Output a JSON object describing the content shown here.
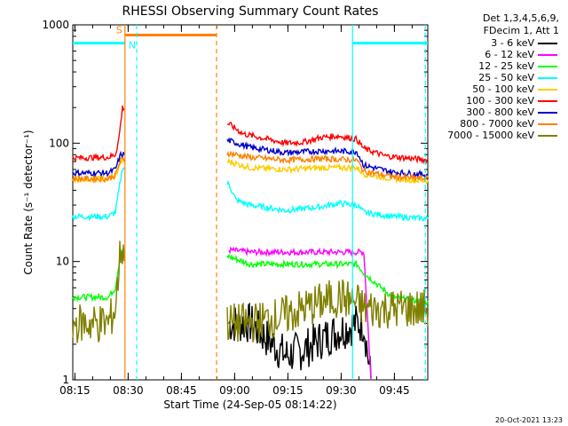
{
  "chart_data": {
    "type": "line",
    "title": "RHESSI Observing Summary Count Rates",
    "xlabel": "Start Time (24-Sep-05 08:14:22)",
    "ylabel": "Count Rate (s⁻¹ detector⁻¹)",
    "yscale": "log",
    "ylim": [
      1,
      1000
    ],
    "xlim_minutes": [
      0,
      100
    ],
    "x_ticks": [
      {
        "t": 0.6,
        "label": "08:15"
      },
      {
        "t": 15.6,
        "label": "08:30"
      },
      {
        "t": 30.6,
        "label": "08:45"
      },
      {
        "t": 45.6,
        "label": "09:00"
      },
      {
        "t": 60.6,
        "label": "09:15"
      },
      {
        "t": 75.6,
        "label": "09:30"
      },
      {
        "t": 90.6,
        "label": "09:45"
      }
    ],
    "y_ticks": [
      {
        "v": 1,
        "label": "1"
      },
      {
        "v": 10,
        "label": "10"
      },
      {
        "v": 100,
        "label": "100"
      },
      {
        "v": 1000,
        "label": "1000"
      }
    ],
    "data_gaps_minutes": [
      [
        14.5,
        43.5
      ]
    ],
    "series": [
      {
        "name": "3 - 6 keV",
        "color": "#000000",
        "points": [
          [
            44,
            3
          ],
          [
            50,
            3
          ],
          [
            55,
            2.2
          ],
          [
            60,
            1.6
          ],
          [
            65,
            1.8
          ],
          [
            70,
            2.2
          ],
          [
            75,
            2.6
          ],
          [
            80,
            3
          ],
          [
            82,
            3
          ],
          [
            84,
            1
          ]
        ]
      },
      {
        "name": "6 - 12 keV",
        "color": "#ff00ff",
        "points": [
          [
            44,
            12.5
          ],
          [
            50,
            12
          ],
          [
            60,
            12
          ],
          [
            70,
            12
          ],
          [
            78,
            12
          ],
          [
            82,
            12
          ],
          [
            84,
            1
          ]
        ]
      },
      {
        "name": "12 - 25 keV",
        "color": "#00ff00",
        "points": [
          [
            0,
            5
          ],
          [
            10,
            5
          ],
          [
            12,
            6
          ],
          [
            13.5,
            12
          ],
          [
            44,
            11
          ],
          [
            50,
            9.5
          ],
          [
            60,
            9.5
          ],
          [
            70,
            9.5
          ],
          [
            80,
            9.5
          ],
          [
            82,
            8
          ],
          [
            90,
            5
          ],
          [
            100,
            4.5
          ]
        ]
      },
      {
        "name": "25 - 50 keV",
        "color": "#00ffff",
        "points": [
          [
            0,
            24
          ],
          [
            10,
            24
          ],
          [
            12,
            26
          ],
          [
            13,
            40
          ],
          [
            14,
            62
          ],
          [
            44,
            45
          ],
          [
            46,
            33
          ],
          [
            50,
            30
          ],
          [
            60,
            27
          ],
          [
            70,
            29
          ],
          [
            75,
            31
          ],
          [
            80,
            30
          ],
          [
            82,
            26
          ],
          [
            90,
            24
          ],
          [
            100,
            23
          ]
        ]
      },
      {
        "name": "50 - 100 keV",
        "color": "#ffcc00",
        "points": [
          [
            0,
            50
          ],
          [
            10,
            50
          ],
          [
            12,
            52
          ],
          [
            13.5,
            70
          ],
          [
            44,
            70
          ],
          [
            50,
            62
          ],
          [
            60,
            60
          ],
          [
            70,
            62
          ],
          [
            80,
            62
          ],
          [
            82,
            55
          ],
          [
            90,
            50
          ],
          [
            100,
            48
          ]
        ]
      },
      {
        "name": "100 - 300 keV",
        "color": "#ff0000",
        "points": [
          [
            0,
            75
          ],
          [
            10,
            76
          ],
          [
            12,
            80
          ],
          [
            13,
            110
          ],
          [
            14,
            200
          ],
          [
            44,
            145
          ],
          [
            48,
            120
          ],
          [
            55,
            108
          ],
          [
            60,
            100
          ],
          [
            65,
            102
          ],
          [
            70,
            112
          ],
          [
            75,
            115
          ],
          [
            80,
            108
          ],
          [
            82,
            90
          ],
          [
            88,
            78
          ],
          [
            100,
            72
          ]
        ]
      },
      {
        "name": "300 - 800 keV",
        "color": "#0000cc",
        "points": [
          [
            0,
            56
          ],
          [
            10,
            56
          ],
          [
            12,
            60
          ],
          [
            13.5,
            80
          ],
          [
            44,
            105
          ],
          [
            50,
            92
          ],
          [
            60,
            83
          ],
          [
            70,
            86
          ],
          [
            80,
            85
          ],
          [
            82,
            65
          ],
          [
            90,
            57
          ],
          [
            100,
            54
          ]
        ]
      },
      {
        "name": "800 - 7000 keV",
        "color": "#ff8000",
        "points": [
          [
            0,
            50
          ],
          [
            10,
            50
          ],
          [
            12,
            54
          ],
          [
            13.5,
            72
          ],
          [
            44,
            82
          ],
          [
            50,
            76
          ],
          [
            60,
            72
          ],
          [
            70,
            74
          ],
          [
            80,
            72
          ],
          [
            82,
            58
          ],
          [
            90,
            52
          ],
          [
            100,
            50
          ]
        ]
      },
      {
        "name": "7000 - 15000 keV",
        "color": "#808000",
        "points": [
          [
            0,
            3
          ],
          [
            10,
            3
          ],
          [
            12,
            4
          ],
          [
            13.5,
            13
          ],
          [
            44,
            3
          ],
          [
            50,
            3
          ],
          [
            60,
            3.5
          ],
          [
            65,
            4
          ],
          [
            70,
            4.5
          ],
          [
            75,
            5
          ],
          [
            80,
            4.5
          ],
          [
            82,
            4
          ],
          [
            90,
            4
          ],
          [
            100,
            4
          ]
        ]
      }
    ],
    "annotations": [
      {
        "type": "bar",
        "text": "S",
        "color": "#ff8000",
        "t_start": 14.7,
        "t_end": 40.5,
        "level": 820
      },
      {
        "type": "bar",
        "text": "N",
        "color": "#00ffff",
        "t_start": 0,
        "t_end": 14.7,
        "level": 700
      },
      {
        "type": "bar",
        "text": "",
        "color": "#00ffff",
        "t_start": 78.8,
        "t_end": 100,
        "level": 700
      },
      {
        "type": "vline",
        "color": "#ff8000",
        "style": "solid",
        "t": 14.7
      },
      {
        "type": "vline",
        "color": "#00ffff",
        "style": "dashed",
        "t": 18.0
      },
      {
        "type": "vline",
        "color": "#ff8000",
        "style": "dashed",
        "t": 40.5
      },
      {
        "type": "vline",
        "color": "#00ffff",
        "style": "solid",
        "t": 78.8
      },
      {
        "type": "vline",
        "color": "#00ffff",
        "style": "dashed",
        "t": 99.3
      }
    ],
    "legend_header": [
      "Det 1,3,4,5,6,9,",
      "FDecim 1, Att 1"
    ],
    "stamp": "20-Oct-2021 13:23"
  }
}
